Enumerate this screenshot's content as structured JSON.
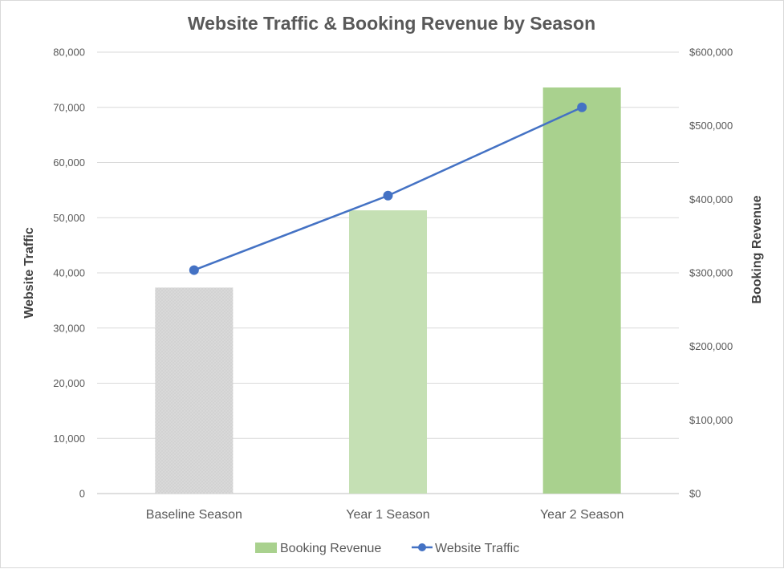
{
  "chart_data": {
    "type": "bar",
    "title": "Website Traffic & Booking Revenue by Season",
    "categories": [
      "Baseline Season",
      "Year 1 Season",
      "Year 2 Season"
    ],
    "series": [
      {
        "name": "Booking Revenue",
        "type": "bar",
        "axis": "right",
        "values": [
          280000,
          385000,
          552000
        ],
        "colors": [
          "#d9d9d9",
          "#c5e0b4",
          "#a9d18e"
        ]
      },
      {
        "name": "Website Traffic",
        "type": "line",
        "axis": "left",
        "values": [
          40500,
          54000,
          70000
        ],
        "color": "#4472c4"
      }
    ],
    "ylabel": "Website Traffic",
    "y2label": "Booking Revenue",
    "ylim": [
      0,
      80000
    ],
    "y2lim": [
      0,
      600000
    ],
    "yticks": [
      "0",
      "10,000",
      "20,000",
      "30,000",
      "40,000",
      "50,000",
      "60,000",
      "70,000",
      "80,000"
    ],
    "y2ticks": [
      "$0",
      "$100,000",
      "$200,000",
      "$300,000",
      "$400,000",
      "$500,000",
      "$600,000"
    ],
    "grid": true,
    "legend_position": "bottom"
  }
}
